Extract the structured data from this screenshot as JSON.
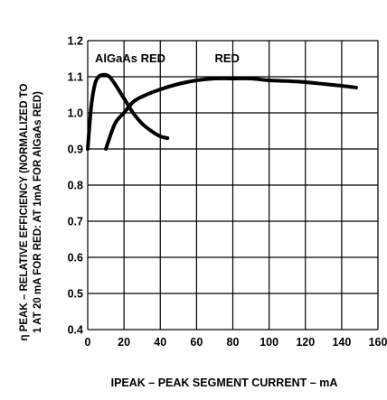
{
  "chart_data": {
    "type": "line",
    "ylabel_line1": "η PEAK – RELATIVE EFFICIENCY (NORMALIZED TO",
    "ylabel_line2": "1 AT 20 mA FOR RED: AT 1mA FOR AlGaAs RED)",
    "xlabel": "IPEAK – PEAK SEGMENT CURRENT – mA",
    "xlim": [
      0,
      160
    ],
    "ylim": [
      0.4,
      1.2
    ],
    "x_ticks": [
      0,
      20,
      40,
      60,
      80,
      100,
      120,
      140,
      160
    ],
    "y_ticks": [
      0.4,
      0.5,
      0.6,
      0.7,
      0.8,
      0.9,
      1.0,
      1.1,
      1.2
    ],
    "x_tick_labels": [
      "0",
      "20",
      "40",
      "60",
      "80",
      "100",
      "120",
      "140",
      "160"
    ],
    "y_tick_labels": [
      "0.4",
      "0.5",
      "0.6",
      "0.7",
      "0.8",
      "0.9",
      "1.0",
      "1.1",
      "1.2"
    ],
    "grid": true,
    "series": [
      {
        "name": "AlGaAs RED",
        "x": [
          0,
          2,
          4,
          6,
          8,
          10,
          12,
          15,
          20,
          25,
          30,
          35,
          40,
          44
        ],
        "y": [
          0.9,
          1.02,
          1.08,
          1.1,
          1.105,
          1.105,
          1.1,
          1.08,
          1.04,
          1.0,
          0.97,
          0.95,
          0.935,
          0.93
        ]
      },
      {
        "name": "RED",
        "x": [
          10,
          15,
          20,
          25,
          30,
          40,
          50,
          60,
          70,
          80,
          90,
          100,
          110,
          120,
          130,
          140,
          148
        ],
        "y": [
          0.9,
          0.97,
          1.0,
          1.03,
          1.045,
          1.065,
          1.08,
          1.09,
          1.095,
          1.095,
          1.095,
          1.09,
          1.088,
          1.085,
          1.08,
          1.075,
          1.07
        ]
      }
    ]
  }
}
